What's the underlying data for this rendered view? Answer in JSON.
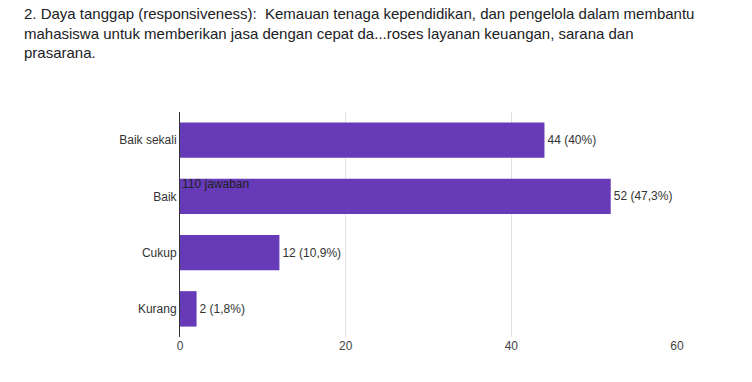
{
  "chart_data": {
    "type": "bar",
    "title": "2. Daya tanggap (responsiveness):  Kemauan tenaga kependidikan, dan pengelola dalam membantu mahasiswa untuk memberikan jasa dengan cepat da...roses layanan keuangan, sarana dan prasarana.",
    "subtitle": "110 jawaban",
    "orientation": "horizontal",
    "categories": [
      "Baik sekali",
      "Baik",
      "Cukup",
      "Kurang"
    ],
    "values": [
      44,
      52,
      12,
      2
    ],
    "value_labels": [
      "44 (40%)",
      "52 (47,3%)",
      "12 (10,9%)",
      "2 (1,8%)"
    ],
    "data_labels": true,
    "color": "#673ab7",
    "xlim": [
      0,
      60
    ],
    "xticks": [
      0,
      20,
      40,
      60
    ],
    "grid": true
  }
}
